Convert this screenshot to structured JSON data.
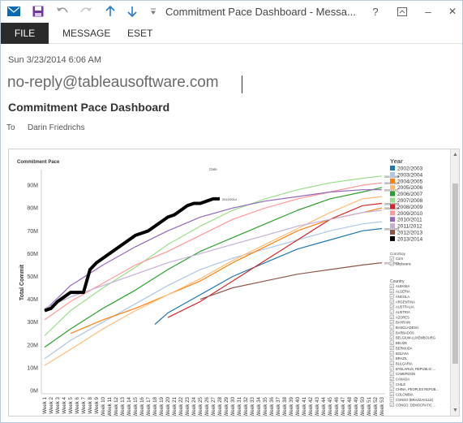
{
  "window": {
    "title": "Commitment Pace Dashboard - Messa...",
    "buttons": {
      "help": "?",
      "minimize": "–",
      "close": "✕"
    }
  },
  "ribbon": {
    "tabs": [
      "FILE",
      "MESSAGE",
      "ESET"
    ]
  },
  "message": {
    "date": "Sun 3/23/2014 6:06 AM",
    "from": "no-reply@tableausoftware.com",
    "subject": "Commitment Pace Dashboard",
    "to_label": "To",
    "to_name": "Darin Friedrichs"
  },
  "dashboard": {
    "title": "Commitment Pace",
    "subtitle": "Date",
    "legend_year_title": "Year",
    "legend_years": [
      {
        "label": "2002/2003",
        "color": "#1f77b4"
      },
      {
        "label": "2003/2004",
        "color": "#aec7e8"
      },
      {
        "label": "2004/2005",
        "color": "#ff7f0e"
      },
      {
        "label": "2005/2006",
        "color": "#ffbb78"
      },
      {
        "label": "2006/2007",
        "color": "#2ca02c"
      },
      {
        "label": "2007/2008",
        "color": "#98df8a"
      },
      {
        "label": "2008/2009",
        "color": "#d62728"
      },
      {
        "label": "2009/2010",
        "color": "#ff9896"
      },
      {
        "label": "2010/2011",
        "color": "#9467bd"
      },
      {
        "label": "2011/2012",
        "color": "#c5b0d5"
      },
      {
        "label": "2012/2013",
        "color": "#8c564b"
      },
      {
        "label": "2013/2014",
        "color": "#000000"
      }
    ],
    "legend_crop_title": "Corn/Soy",
    "legend_crops": [
      "Corn",
      "Soybeans"
    ],
    "legend_country_title": "Country",
    "legend_countries": [
      "ALBANIA",
      "ALGERIA",
      "ANGOLA",
      "ARGENTINA",
      "AUSTRALIA",
      "AUSTRIA",
      "AZORES",
      "BAHRAIN",
      "BANGLADESH",
      "BARBADOS",
      "BELGIUM-LUXEMBOURG",
      "BELIZE",
      "BERMUDA",
      "BOLIVIA",
      "BRAZIL",
      "BULGARIA",
      "BYELARUS, REPUBLIC ...",
      "CAMEROON",
      "CANADA",
      "CHILE",
      "CHINA, PEOPLES REPUB...",
      "COLOMBIA",
      "CONGO (BRAZZAVILLE)",
      "CONGO, DEMOCRATIC ..."
    ]
  },
  "chart_data": {
    "type": "line",
    "title": "Commitment Pace",
    "subtitle": "Date",
    "xlabel": "",
    "ylabel": "Total Commit",
    "ylim": [
      0,
      95000000
    ],
    "yticks": [
      "0M",
      "10M",
      "20M",
      "30M",
      "40M",
      "50M",
      "60M",
      "70M",
      "80M",
      "90M"
    ],
    "ytick_values": [
      0,
      10000000,
      20000000,
      30000000,
      40000000,
      50000000,
      60000000,
      70000000,
      80000000,
      90000000
    ],
    "categories": [
      "Week 1",
      "Week 2",
      "Week 3",
      "Week 4",
      "Week 5",
      "Week 6",
      "Week 7",
      "Week 8",
      "Week 9",
      "Week 10",
      "Week 11",
      "Week 12",
      "Week 13",
      "Week 14",
      "Week 15",
      "Week 16",
      "Week 17",
      "Week 18",
      "Week 19",
      "Week 20",
      "Week 21",
      "Week 22",
      "Week 23",
      "Week 24",
      "Week 25",
      "Week 26",
      "Week 27",
      "Week 28",
      "Week 29",
      "Week 30",
      "Week 31",
      "Week 32",
      "Week 33",
      "Week 34",
      "Week 35",
      "Week 36",
      "Week 37",
      "Week 38",
      "Week 39",
      "Week 40",
      "Week 41",
      "Week 42",
      "Week 43",
      "Week 44",
      "Week 45",
      "Week 46",
      "Week 47",
      "Week 48",
      "Week 49",
      "Week 50",
      "Week 51",
      "Week 52",
      "Week 53"
    ],
    "grid": false,
    "legend": "right",
    "series": [
      {
        "name": "2002/2003",
        "color": "#1f77b4",
        "end_label": "2002/2003",
        "width": 1.2,
        "points": [
          [
            18,
            29
          ],
          [
            20,
            34
          ],
          [
            25,
            42
          ],
          [
            30,
            50
          ],
          [
            35,
            56
          ],
          [
            40,
            62
          ],
          [
            45,
            66
          ],
          [
            50,
            70
          ],
          [
            53,
            71
          ]
        ]
      },
      {
        "name": "2003/2004",
        "color": "#aec7e8",
        "end_label": "",
        "width": 1.2,
        "points": [
          [
            1,
            14
          ],
          [
            5,
            22
          ],
          [
            10,
            30
          ],
          [
            15,
            38
          ],
          [
            20,
            46
          ],
          [
            25,
            53
          ],
          [
            30,
            58
          ],
          [
            35,
            62
          ],
          [
            40,
            66
          ],
          [
            45,
            70
          ],
          [
            50,
            73
          ],
          [
            53,
            74
          ]
        ]
      },
      {
        "name": "2004/2005",
        "color": "#ff7f0e",
        "end_label": "2004/2005",
        "width": 1.2,
        "points": [
          [
            5,
            25
          ],
          [
            10,
            31
          ],
          [
            15,
            36
          ],
          [
            20,
            42
          ],
          [
            25,
            48
          ],
          [
            30,
            56
          ],
          [
            35,
            63
          ],
          [
            40,
            70
          ],
          [
            45,
            75
          ],
          [
            50,
            78
          ],
          [
            53,
            80
          ]
        ]
      },
      {
        "name": "2005/2006",
        "color": "#ffbb78",
        "end_label": "",
        "width": 1.2,
        "points": [
          [
            1,
            11
          ],
          [
            5,
            18
          ],
          [
            10,
            27
          ],
          [
            15,
            35
          ],
          [
            20,
            42
          ],
          [
            25,
            49
          ],
          [
            30,
            57
          ],
          [
            35,
            64
          ],
          [
            40,
            71
          ],
          [
            45,
            78
          ],
          [
            50,
            84
          ],
          [
            53,
            85
          ]
        ]
      },
      {
        "name": "2006/2007",
        "color": "#2ca02c",
        "end_label": "",
        "width": 1.2,
        "points": [
          [
            1,
            19
          ],
          [
            5,
            27
          ],
          [
            10,
            36
          ],
          [
            15,
            44
          ],
          [
            20,
            53
          ],
          [
            25,
            61
          ],
          [
            30,
            67
          ],
          [
            35,
            73
          ],
          [
            40,
            79
          ],
          [
            45,
            84
          ],
          [
            50,
            87
          ],
          [
            53,
            89
          ]
        ]
      },
      {
        "name": "2007/2008",
        "color": "#98df8a",
        "end_label": "2007/2008",
        "width": 1.2,
        "points": [
          [
            1,
            24
          ],
          [
            5,
            35
          ],
          [
            10,
            45
          ],
          [
            15,
            54
          ],
          [
            20,
            64
          ],
          [
            25,
            72
          ],
          [
            30,
            79
          ],
          [
            35,
            84
          ],
          [
            40,
            88
          ],
          [
            45,
            91
          ],
          [
            50,
            93
          ],
          [
            53,
            94
          ]
        ]
      },
      {
        "name": "2008/2009",
        "color": "#d62728",
        "end_label": "2008/2009",
        "width": 1.2,
        "points": [
          [
            20,
            32
          ],
          [
            25,
            39
          ],
          [
            30,
            48
          ],
          [
            35,
            57
          ],
          [
            40,
            66
          ],
          [
            45,
            75
          ],
          [
            50,
            81
          ],
          [
            53,
            82
          ]
        ]
      },
      {
        "name": "2009/2010",
        "color": "#ff9896",
        "end_label": "2009/2010",
        "width": 1.2,
        "points": [
          [
            1,
            31
          ],
          [
            5,
            39
          ],
          [
            10,
            47
          ],
          [
            15,
            55
          ],
          [
            20,
            61
          ],
          [
            25,
            68
          ],
          [
            30,
            75
          ],
          [
            35,
            80
          ],
          [
            40,
            84
          ],
          [
            45,
            87
          ],
          [
            50,
            90
          ],
          [
            53,
            91
          ]
        ]
      },
      {
        "name": "2010/2011",
        "color": "#9467bd",
        "end_label": "2010/2011",
        "width": 1.2,
        "points": [
          [
            1,
            35
          ],
          [
            5,
            46
          ],
          [
            10,
            55
          ],
          [
            15,
            63
          ],
          [
            20,
            70
          ],
          [
            25,
            76
          ],
          [
            30,
            80
          ],
          [
            35,
            83
          ],
          [
            40,
            85
          ],
          [
            45,
            87
          ],
          [
            50,
            88
          ],
          [
            53,
            88
          ]
        ]
      },
      {
        "name": "2011/2012",
        "color": "#c5b0d5",
        "end_label": "",
        "width": 1.2,
        "points": [
          [
            1,
            36
          ],
          [
            5,
            41
          ],
          [
            10,
            46
          ],
          [
            15,
            51
          ],
          [
            20,
            56
          ],
          [
            25,
            60
          ],
          [
            30,
            64
          ],
          [
            35,
            68
          ],
          [
            40,
            72
          ],
          [
            45,
            75
          ],
          [
            50,
            78
          ],
          [
            53,
            79
          ]
        ]
      },
      {
        "name": "2012/2013",
        "color": "#8c564b",
        "end_label": "2012/2013",
        "width": 1.2,
        "points": [
          [
            25,
            40
          ],
          [
            30,
            45
          ],
          [
            35,
            48
          ],
          [
            40,
            51
          ],
          [
            45,
            53
          ],
          [
            50,
            55
          ],
          [
            53,
            56
          ]
        ]
      },
      {
        "name": "2013/2014",
        "color": "#000000",
        "end_label": "2013/2014",
        "width": 4,
        "points": [
          [
            1,
            35
          ],
          [
            2,
            36
          ],
          [
            3,
            39
          ],
          [
            4,
            41
          ],
          [
            5,
            43
          ],
          [
            6,
            43
          ],
          [
            7,
            43
          ],
          [
            8,
            53
          ],
          [
            9,
            56
          ],
          [
            10,
            58
          ],
          [
            11,
            60
          ],
          [
            12,
            62
          ],
          [
            13,
            64
          ],
          [
            14,
            66
          ],
          [
            15,
            68
          ],
          [
            16,
            69
          ],
          [
            17,
            70
          ],
          [
            18,
            72
          ],
          [
            19,
            74
          ],
          [
            20,
            76
          ],
          [
            21,
            77
          ],
          [
            22,
            79
          ],
          [
            23,
            81
          ],
          [
            24,
            82
          ],
          [
            25,
            82
          ],
          [
            26,
            83
          ],
          [
            27,
            84
          ],
          [
            28,
            84
          ]
        ]
      }
    ]
  }
}
